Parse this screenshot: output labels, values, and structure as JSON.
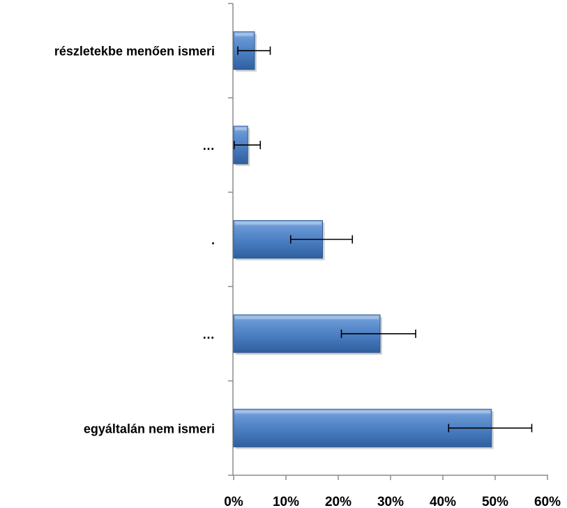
{
  "chart_data": {
    "type": "bar",
    "orientation": "horizontal",
    "categories": [
      "részletekbe menően ismeri",
      "…",
      ".",
      "…",
      "egyáltalán nem ismeri"
    ],
    "values": [
      4,
      2.7,
      17,
      28,
      49.3
    ],
    "error_low": [
      0.8,
      0.1,
      10.9,
      20.6,
      41.1
    ],
    "error_high": [
      7,
      5.1,
      22.7,
      34.8,
      57
    ],
    "xlim": [
      0,
      60
    ],
    "x_ticks": [
      "0%",
      "10%",
      "20%",
      "30%",
      "40%",
      "50%",
      "60%"
    ],
    "x_tick_values": [
      0,
      10,
      20,
      30,
      40,
      50,
      60
    ],
    "grid": false,
    "bar_color": "#4a7ec2",
    "bar_edge_color": "#2e5a93"
  }
}
